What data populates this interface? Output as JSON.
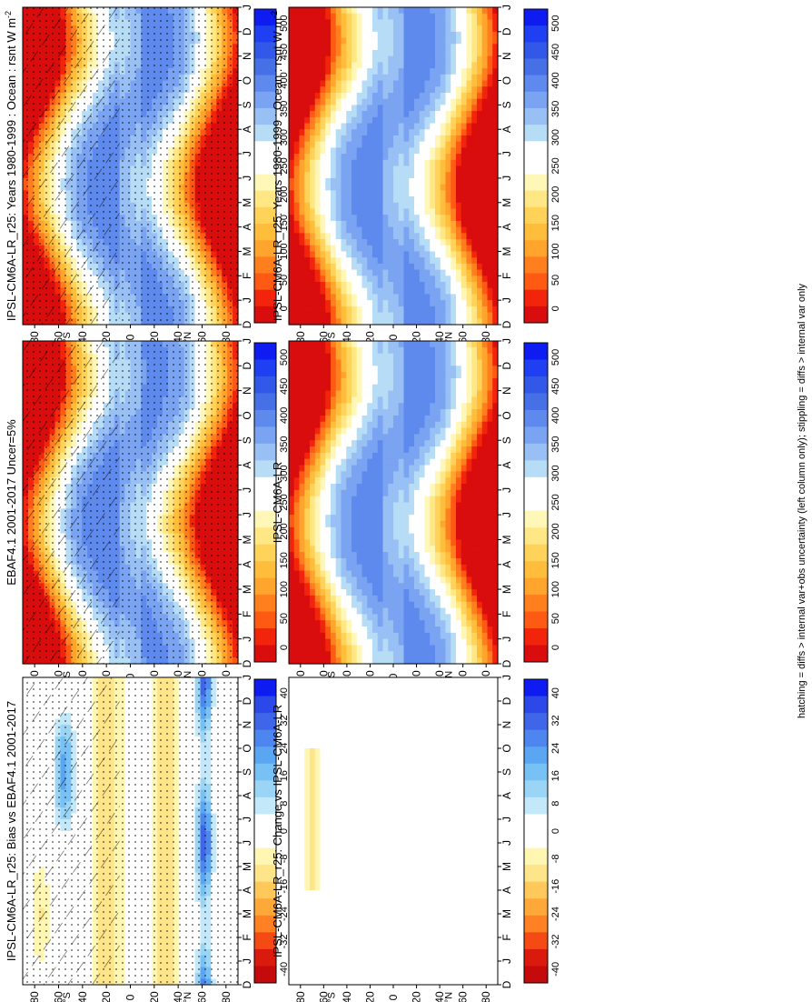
{
  "figure": {
    "footnote": "hatching = diffs > internal var+obs uncertainty (left column only); stippling = diffs > internal var only"
  },
  "axes": {
    "months": [
      "D",
      "J",
      "F",
      "M",
      "A",
      "M",
      "J",
      "J",
      "A",
      "S",
      "O",
      "N",
      "D",
      "J"
    ],
    "lat_ticks": [
      "80",
      "60",
      "40",
      "20",
      "0",
      "20",
      "40",
      "60",
      "80"
    ],
    "south_label": "°S",
    "north_label": "°N"
  },
  "colors": {
    "abs_scale": [
      "#0e1cf2",
      "#1f3ff2",
      "#3158e8",
      "#4670e6",
      "#5f8aed",
      "#7aa3f2",
      "#98c0f4",
      "#b6dcf6",
      "#ffffff",
      "#ffffff",
      "#fff7b8",
      "#ffe785",
      "#ffd25a",
      "#ffbd3c",
      "#ffa42c",
      "#ff7e1e",
      "#ff5a14",
      "#f2250c",
      "#d90d0d"
    ],
    "diff_scale": [
      "#0e1cf2",
      "#2c48e8",
      "#3f66e8",
      "#4c86ee",
      "#5ba6f2",
      "#78c1f4",
      "#9bd5f6",
      "#c3e8fa",
      "#ffffff",
      "#ffffff",
      "#fff6b2",
      "#ffe58a",
      "#ffc85a",
      "#ffa83a",
      "#ff8124",
      "#f54a14",
      "#d91a0c",
      "#c40a0a"
    ]
  },
  "chart_data": [
    {
      "type": "heatmap",
      "title": "IPSL-CM6A-LR_r25: Years 1980-1999 : Ocean : rsnt W m",
      "title_superscript": "-2",
      "xlabel": "",
      "ylabel": "",
      "x": [
        "D",
        "J",
        "F",
        "M",
        "A",
        "M",
        "J",
        "J",
        "A",
        "S",
        "O",
        "N",
        "D",
        "J"
      ],
      "y": [
        80,
        60,
        40,
        20,
        0,
        -20,
        -40,
        -60,
        -80
      ],
      "colorbar": {
        "labels": [
          "500",
          "450",
          "400",
          "350",
          "300",
          "250",
          "200",
          "150",
          "100",
          "50",
          "0"
        ],
        "range": [
          0,
          525
        ]
      },
      "hatching": true
    },
    {
      "type": "heatmap",
      "title": "EBAF4.1 2001-2017 Uncer=5%",
      "xlabel": "",
      "ylabel": "",
      "x": [
        "D",
        "J",
        "F",
        "M",
        "A",
        "M",
        "J",
        "J",
        "A",
        "S",
        "O",
        "N",
        "D",
        "J"
      ],
      "y": [
        80,
        60,
        40,
        20,
        0,
        -20,
        -40,
        -60,
        -80
      ],
      "colorbar": {
        "labels": [
          "500",
          "450",
          "400",
          "350",
          "300",
          "250",
          "200",
          "150",
          "100",
          "50",
          "0"
        ],
        "range": [
          0,
          525
        ]
      },
      "hatching": true
    },
    {
      "type": "heatmap",
      "title": "IPSL-CM6A-LR_r25: Bias vs EBAF4.1 2001-2017",
      "xlabel": "",
      "ylabel": "",
      "x": [
        "D",
        "J",
        "F",
        "M",
        "A",
        "M",
        "J",
        "J",
        "A",
        "S",
        "O",
        "N",
        "D",
        "J"
      ],
      "y": [
        80,
        60,
        40,
        20,
        0,
        -20,
        -40,
        -60,
        -80
      ],
      "colorbar": {
        "labels": [
          "40",
          "32",
          "24",
          "16",
          "8",
          "0",
          "-8",
          "-16",
          "-24",
          "-32",
          "-40"
        ],
        "range": [
          -44,
          44
        ]
      },
      "hatching": true
    },
    {
      "type": "heatmap",
      "title": "IPSL-CM6A-LR_r25: Years 1980-1999 : Ocean : rsnt W m",
      "title_superscript": "-2",
      "xlabel": "",
      "ylabel": "",
      "x": [
        "D",
        "J",
        "F",
        "M",
        "A",
        "M",
        "J",
        "J",
        "A",
        "S",
        "O",
        "N",
        "D",
        "J"
      ],
      "y": [
        80,
        60,
        40,
        20,
        0,
        -20,
        -40,
        -60,
        -80
      ],
      "colorbar": {
        "labels": [
          "500",
          "450",
          "400",
          "350",
          "300",
          "250",
          "200",
          "150",
          "100",
          "50",
          "0"
        ],
        "range": [
          0,
          525
        ]
      },
      "hatching": false
    },
    {
      "type": "heatmap",
      "title": "IPSL-CM6A-LR",
      "xlabel": "",
      "ylabel": "",
      "x": [
        "D",
        "J",
        "F",
        "M",
        "A",
        "M",
        "J",
        "J",
        "A",
        "S",
        "O",
        "N",
        "D",
        "J"
      ],
      "y": [
        80,
        60,
        40,
        20,
        0,
        -20,
        -40,
        -60,
        -80
      ],
      "colorbar": {
        "labels": [
          "500",
          "450",
          "400",
          "350",
          "300",
          "250",
          "200",
          "150",
          "100",
          "50",
          "0"
        ],
        "range": [
          0,
          525
        ]
      },
      "hatching": false
    },
    {
      "type": "heatmap",
      "title": "IPSL-CM6A-LR_r25: Change vs IPSL-CM6A-LR",
      "xlabel": "",
      "ylabel": "",
      "x": [
        "D",
        "J",
        "F",
        "M",
        "A",
        "M",
        "J",
        "J",
        "A",
        "S",
        "O",
        "N",
        "D",
        "J"
      ],
      "y": [
        80,
        60,
        40,
        20,
        0,
        -20,
        -40,
        -60,
        -80
      ],
      "colorbar": {
        "labels": [
          "40",
          "32",
          "24",
          "16",
          "8",
          "0",
          "-8",
          "-16",
          "-24",
          "-32",
          "-40"
        ],
        "range": [
          -44,
          44
        ]
      },
      "hatching": false
    }
  ]
}
